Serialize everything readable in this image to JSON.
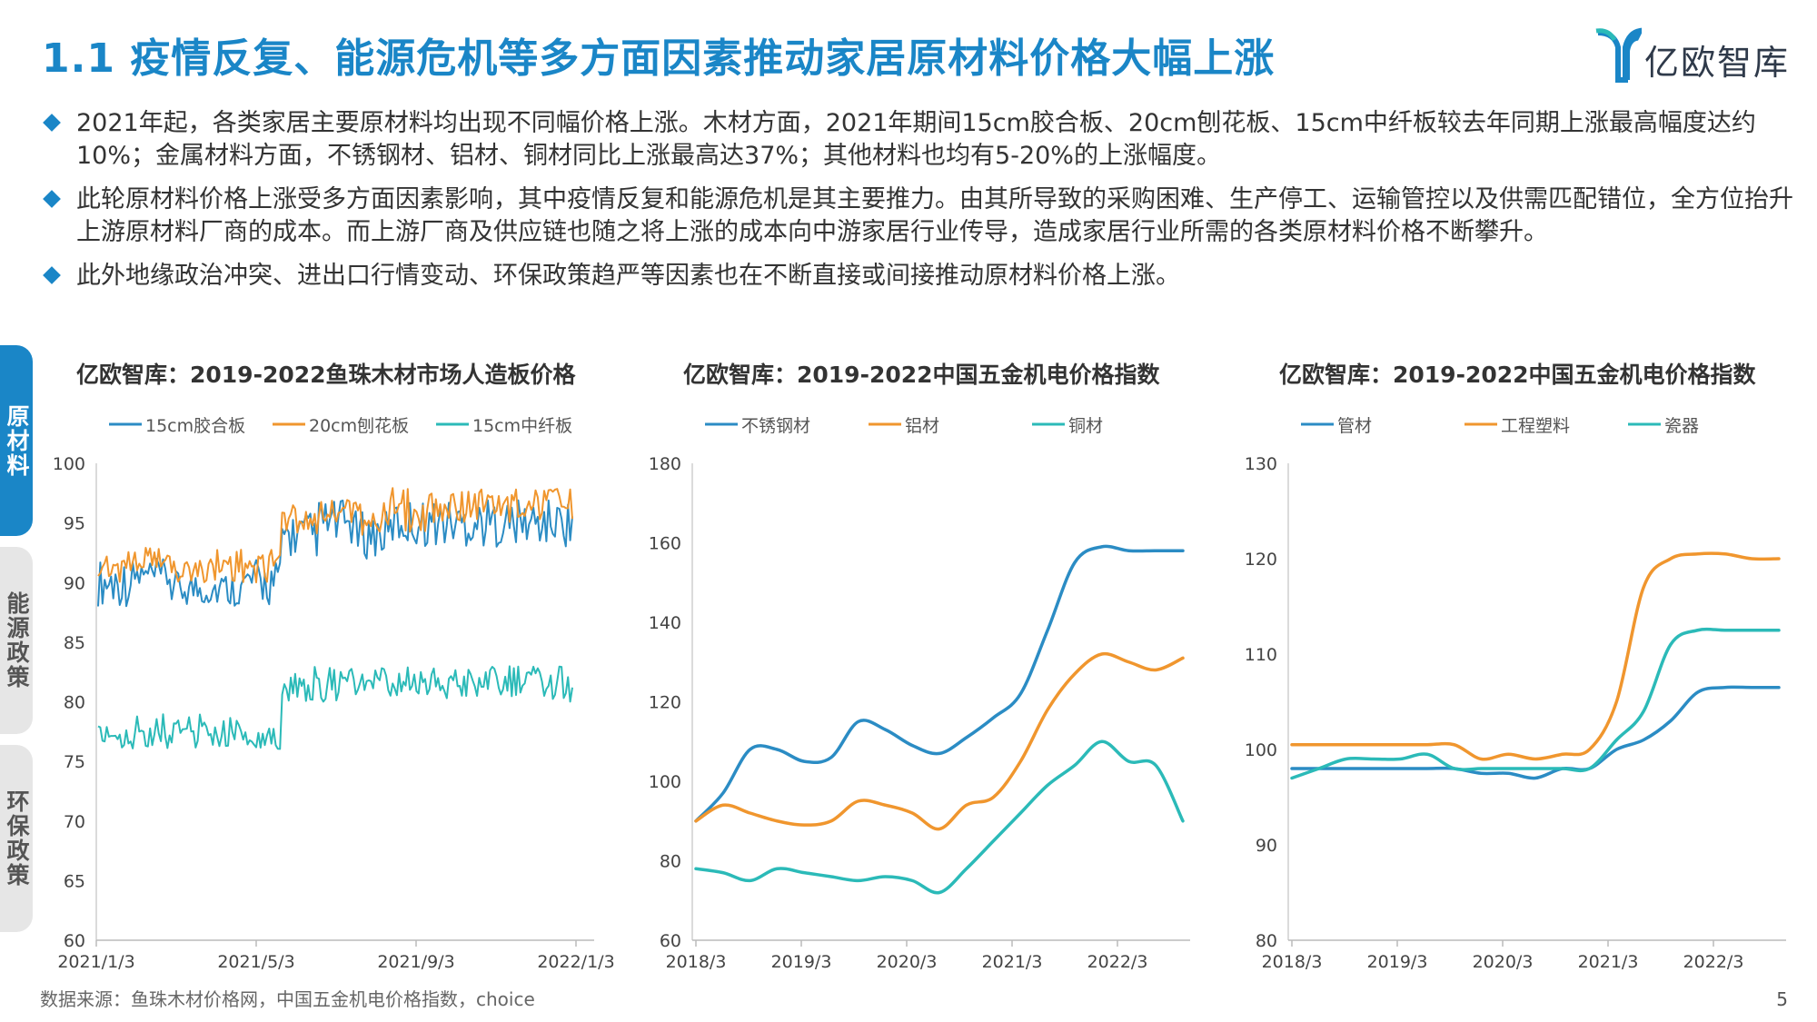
{
  "page": {
    "title": "1.1 疫情反复、能源危机等多方面因素推动家居原材料价格大幅上涨",
    "logo_text": "亿欧智库",
    "bullets": [
      "2021年起，各类家居主要原材料均出现不同幅价格上涨。木材方面，2021年期间15cm胶合板、20cm刨花板、15cm中纤板较去年同期上涨最高幅度达约10%；金属材料方面，不锈钢材、铝材、铜材同比上涨最高达37%；其他材料也均有5-20%的上涨幅度。",
      "此轮原材料价格上涨受多方面因素影响，其中疫情反复和能源危机是其主要推力。由其所导致的采购困难、生产停工、运输管控以及供需匹配错位，全方位抬升上游原材料厂商的成本。而上游厂商及供应链也随之将上涨的成本向中游家居行业传导，造成家居行业所需的各类原材料价格不断攀升。",
      "此外地缘政治冲突、进出口行情变动、环保政策趋严等因素也在不断直接或间接推动原材料价格上涨。"
    ],
    "side_tabs": [
      "原材料",
      "能源政策",
      "环保政策"
    ],
    "source": "数据来源：鱼珠木材价格网，中国五金机电价格指数，choice",
    "page_number": "5",
    "colors": {
      "accent": "#1a86c7",
      "series": [
        "#2b8cc4",
        "#f0962e",
        "#2bbab8"
      ]
    }
  },
  "chart_data": [
    {
      "type": "line",
      "title": "亿欧智库：2019-2022鱼珠木材市场人造板价格",
      "x_ticks": [
        "2021/1/3",
        "2021/5/3",
        "2021/9/3",
        "2022/1/3"
      ],
      "ylim": [
        60,
        100
      ],
      "y_ticks": [
        60,
        65,
        70,
        75,
        80,
        85,
        90,
        95,
        100
      ],
      "note": "dense daily prices",
      "series": [
        {
          "name": "15cm胶合板",
          "color": "#2b8cc4",
          "low": [
            88,
            89,
            88,
            88,
            88,
            92,
            93,
            92,
            93,
            93,
            93,
            93,
            93
          ],
          "high": [
            92,
            92,
            91,
            91,
            92,
            96,
            97,
            96,
            97,
            97,
            97,
            97,
            97
          ]
        },
        {
          "name": "20cm刨花板",
          "color": "#f0962e",
          "low": [
            90,
            91,
            90,
            90,
            90,
            94,
            95,
            94,
            94,
            95,
            95,
            95,
            95
          ],
          "high": [
            93,
            93,
            92,
            93,
            93,
            97,
            97,
            97,
            98,
            98,
            98,
            98,
            98
          ]
        },
        {
          "name": "15cm中纤板",
          "color": "#2bbab8",
          "low": [
            76,
            76,
            76,
            76,
            76,
            80,
            80,
            80,
            80,
            80,
            80,
            80,
            80
          ],
          "high": [
            78,
            79,
            79,
            79,
            78,
            83,
            83,
            83,
            83,
            83,
            83,
            83,
            83
          ]
        }
      ]
    },
    {
      "type": "line",
      "title": "亿欧智库：2019-2022中国五金机电价格指数",
      "x_ticks": [
        "2018/3",
        "2019/3",
        "2020/3",
        "2021/3",
        "2022/3"
      ],
      "ylim": [
        60,
        180
      ],
      "y_ticks": [
        60,
        80,
        100,
        120,
        140,
        160,
        180
      ],
      "series": [
        {
          "name": "不锈钢材",
          "color": "#2b8cc4",
          "values": [
            90,
            97,
            108,
            108,
            105,
            106,
            115,
            113,
            109,
            107,
            111,
            116,
            122,
            138,
            155,
            159,
            158,
            158,
            158
          ]
        },
        {
          "name": "铝材",
          "color": "#f0962e",
          "values": [
            90,
            94,
            92,
            90,
            89,
            90,
            95,
            94,
            92,
            88,
            94,
            96,
            105,
            118,
            127,
            132,
            130,
            128,
            131
          ]
        },
        {
          "name": "铜材",
          "color": "#2bbab8",
          "values": [
            78,
            77,
            75,
            78,
            77,
            76,
            75,
            76,
            75,
            72,
            78,
            85,
            92,
            99,
            104,
            110,
            105,
            104,
            90
          ]
        }
      ]
    },
    {
      "type": "line",
      "title": "亿欧智库：2019-2022中国五金机电价格指数",
      "x_ticks": [
        "2018/3",
        "2019/3",
        "2020/3",
        "2021/3",
        "2022/3"
      ],
      "ylim": [
        80,
        130
      ],
      "y_ticks": [
        80,
        90,
        100,
        110,
        120,
        130
      ],
      "series": [
        {
          "name": "管材",
          "color": "#2b8cc4",
          "values": [
            98,
            98,
            98,
            98,
            98,
            98,
            98,
            97.5,
            97.5,
            97,
            98,
            98,
            100,
            101,
            103,
            106,
            106.5,
            106.5,
            106.5
          ]
        },
        {
          "name": "工程塑料",
          "color": "#f0962e",
          "values": [
            100.5,
            100.5,
            100.5,
            100.5,
            100.5,
            100.5,
            100.5,
            99,
            99.5,
            99,
            99.5,
            100,
            105,
            117,
            120,
            120.5,
            120.5,
            120,
            120
          ]
        },
        {
          "name": "瓷器",
          "color": "#2bbab8",
          "values": [
            97,
            98,
            99,
            99,
            99,
            99.5,
            98,
            98,
            98,
            98,
            98,
            98,
            101,
            104,
            111,
            112.5,
            112.5,
            112.5,
            112.5
          ]
        }
      ]
    }
  ]
}
